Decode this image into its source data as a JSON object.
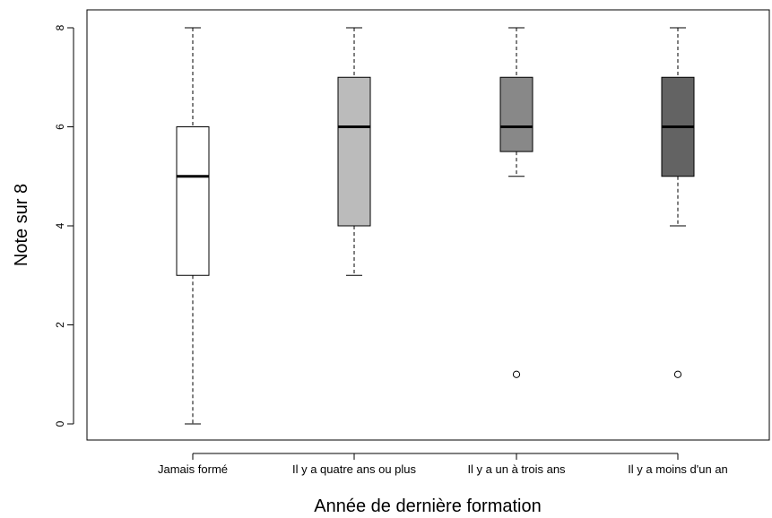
{
  "chart_data": {
    "type": "boxplot",
    "title": "",
    "xlabel": "Année de dernière formation",
    "ylabel": "Note sur 8",
    "ylim": [
      -0.35,
      8.35
    ],
    "yticks": [
      0,
      2,
      4,
      6,
      8
    ],
    "grid": false,
    "categories": [
      "Jamais formé",
      "Il y a quatre ans ou plus",
      "Il y a un à trois ans",
      "Il y a moins d'un an"
    ],
    "boxes": [
      {
        "category": "Jamais formé",
        "min": 0,
        "q1": 3,
        "median": 5,
        "q3": 6,
        "max": 8,
        "outliers": [],
        "fill": "#ffffff"
      },
      {
        "category": "Il y a quatre ans ou plus",
        "min": 3,
        "q1": 4,
        "median": 6,
        "q3": 7,
        "max": 8,
        "outliers": [],
        "fill": "#bbbbbb"
      },
      {
        "category": "Il y a un à trois ans",
        "min": 5,
        "q1": 5.5,
        "median": 6,
        "q3": 7,
        "max": 8,
        "outliers": [
          1
        ],
        "fill": "#888888"
      },
      {
        "category": "Il y a moins d'un an",
        "min": 4,
        "q1": 5,
        "median": 6,
        "q3": 7,
        "max": 8,
        "outliers": [
          1
        ],
        "fill": "#636363"
      }
    ]
  }
}
